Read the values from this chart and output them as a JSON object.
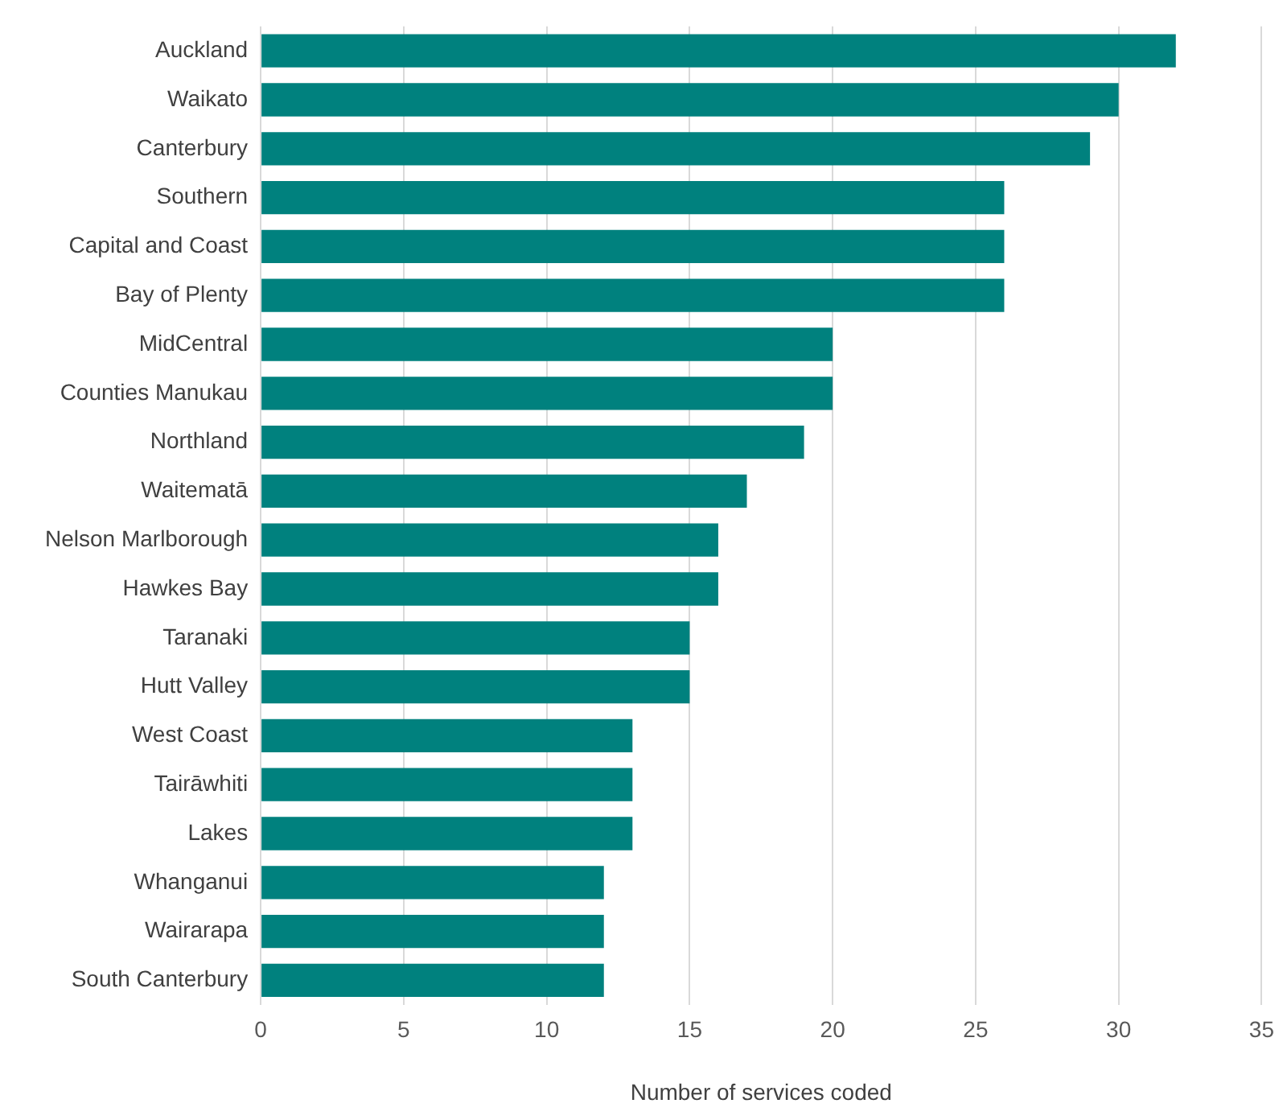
{
  "chart_data": {
    "type": "bar",
    "orientation": "horizontal",
    "xlabel": "Number of services coded",
    "categories": [
      "Auckland",
      "Waikato",
      "Canterbury",
      "Southern",
      "Capital and Coast",
      "Bay of Plenty",
      "MidCentral",
      "Counties Manukau",
      "Northland",
      "Waitematā",
      "Nelson Marlborough",
      "Hawkes Bay",
      "Taranaki",
      "Hutt Valley",
      "West Coast",
      "Tairāwhiti",
      "Lakes",
      "Whanganui",
      "Wairarapa",
      "South Canterbury"
    ],
    "values": [
      32,
      30,
      29,
      26,
      26,
      26,
      20,
      20,
      19,
      17,
      16,
      16,
      15,
      15,
      13,
      13,
      13,
      12,
      12,
      12
    ],
    "color": "#00817e",
    "xlim": [
      0,
      35
    ],
    "xticks": [
      0,
      5,
      10,
      15,
      20,
      25,
      30,
      35
    ],
    "grid": "x",
    "legend": false
  }
}
